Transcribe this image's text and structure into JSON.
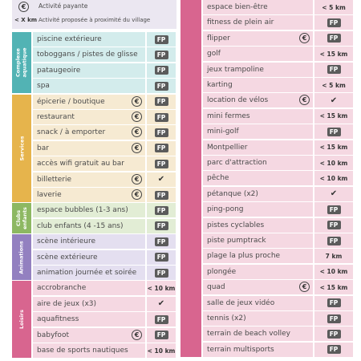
{
  "legend": {
    "paid_icon": "€",
    "paid_label": "Activité payante",
    "distance_icon": "< X km",
    "distance_label": "Activité proposée à proximité du village"
  },
  "left_sections": [
    {
      "label": [
        "Complexe",
        "aquatique"
      ],
      "band_color": "#52b3b4",
      "cell_color": "#d3ecec",
      "rows": [
        {
          "name": "piscine extérieure",
          "status": "FP"
        },
        {
          "name": "toboggans / pistes de glisse",
          "status": "FP"
        },
        {
          "name": "pataugeoire",
          "status": "FP"
        },
        {
          "name": "spa",
          "status": "FP"
        }
      ]
    },
    {
      "label": [
        "Services"
      ],
      "band_color": "#e6b44c",
      "cell_color": "#f6ead2",
      "rows": [
        {
          "name": "épicerie / boutique",
          "icon": "€",
          "status": "FP"
        },
        {
          "name": "restaurant",
          "icon": "€",
          "status": "FP"
        },
        {
          "name": "snack / à emporter",
          "icon": "€",
          "status": "FP"
        },
        {
          "name": "bar",
          "icon": "€",
          "status": "FP"
        },
        {
          "name": "accès wifi gratuit au bar",
          "status": "FP"
        },
        {
          "name": "billetterie",
          "icon": "€",
          "status": "✔"
        },
        {
          "name": "laverie",
          "icon": "€",
          "status": "FP"
        }
      ]
    },
    {
      "label": [
        "Clubs",
        "enfants"
      ],
      "band_color": "#8db862",
      "cell_color": "#e2edd5",
      "rows": [
        {
          "name": "espace bubbles (1-3 ans)",
          "status": "FP"
        },
        {
          "name": "club enfants (4 -15 ans)",
          "status": "FP"
        }
      ]
    },
    {
      "label": [
        "Animations"
      ],
      "band_color": "#9380c0",
      "cell_color": "#e4dff0",
      "rows": [
        {
          "name": "scène intérieure",
          "status": "FP"
        },
        {
          "name": "scène extérieure",
          "status": "FP"
        },
        {
          "name": "animation journée et soirée",
          "status": "FP"
        }
      ]
    },
    {
      "label": [
        "Loisirs"
      ],
      "band_color": "#d8658f",
      "cell_color": "#f5d8e2",
      "rows": [
        {
          "name": "accrobranche",
          "status": "< 10 km"
        },
        {
          "name": "aire de jeux (x3)",
          "status": "✔"
        },
        {
          "name": "aquafitness",
          "status": "FP"
        },
        {
          "name": "babyfoot",
          "icon": "€",
          "status": "FP"
        },
        {
          "name": "base de sports nautiques",
          "status": "< 10 km"
        }
      ]
    }
  ],
  "right_section": {
    "band_color": "#d8658f",
    "cell_color": "#f5d8e2",
    "rows": [
      {
        "name": "espace bien-être",
        "status": "< 5 km"
      },
      {
        "name": "fitness de plein air",
        "status": "FP"
      },
      {
        "name": "flipper",
        "icon": "€",
        "status": "FP"
      },
      {
        "name": "golf",
        "status": "< 15 km"
      },
      {
        "name": "jeux trampoline",
        "status": "FP"
      },
      {
        "name": "karting",
        "status": "< 5 km"
      },
      {
        "name": "location de vélos",
        "icon": "€",
        "status": "✔"
      },
      {
        "name": "mini fermes",
        "status": "< 15 km"
      },
      {
        "name": "mini-golf",
        "status": "FP"
      },
      {
        "name": "Montpellier",
        "status": "< 15 km"
      },
      {
        "name": "parc d'attraction",
        "status": "< 10 km"
      },
      {
        "name": "pêche",
        "status": "< 10 km"
      },
      {
        "name": "pétanque (x2)",
        "status": "✔"
      },
      {
        "name": "ping-pong",
        "status": "FP"
      },
      {
        "name": "pistes cyclables",
        "status": "FP"
      },
      {
        "name": "piste pumptrack",
        "status": "FP"
      },
      {
        "name": "plage la plus proche",
        "status": "7 km"
      },
      {
        "name": "plongée",
        "status": "< 10 km"
      },
      {
        "name": "quad",
        "icon": "€",
        "status": "< 15 km"
      },
      {
        "name": "salle de jeux vidéo",
        "status": "FP"
      },
      {
        "name": "tennis (x2)",
        "status": "FP"
      },
      {
        "name": "terrain de beach volley",
        "status": "FP"
      },
      {
        "name": "terrain multisports",
        "status": "FP"
      }
    ]
  }
}
